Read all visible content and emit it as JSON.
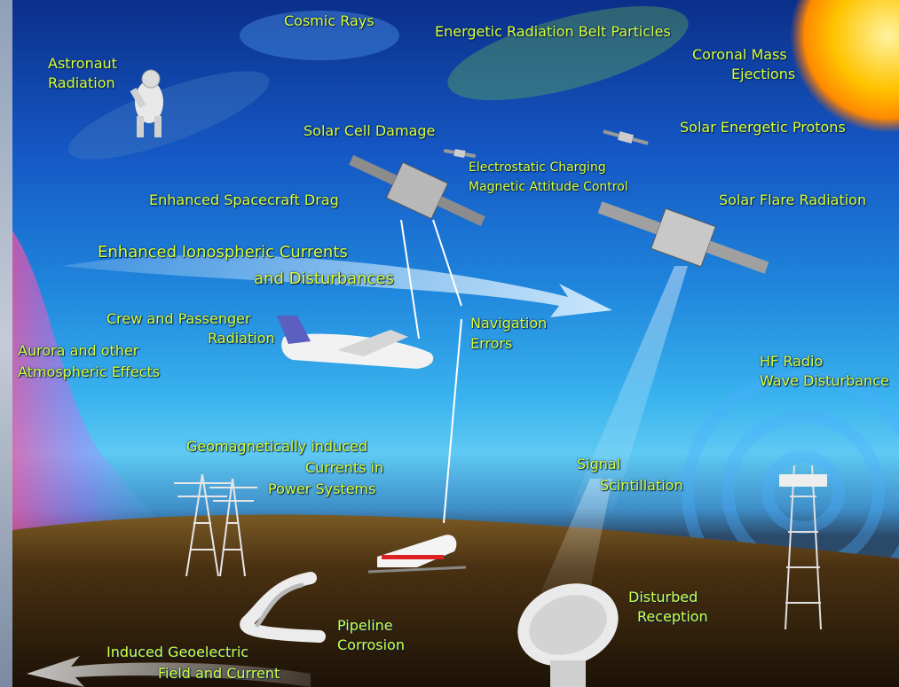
{
  "labels": {
    "cosmic_rays": "Cosmic Rays",
    "belt_particles": "Energetic Radiation Belt Particles",
    "cme_1": "Coronal Mass",
    "cme_2": "Ejections",
    "astronaut_1": "Astronaut",
    "astronaut_2": "Radiation",
    "solar_cell": "Solar Cell Damage",
    "solar_protons": "Solar Energetic Protons",
    "electrostatic": "Electrostatic Charging",
    "magnetic_attitude": "Magnetic Attitude Control",
    "spacecraft_drag": "Enhanced Spacecraft Drag",
    "solar_flare": "Solar Flare Radiation",
    "iono_1": "Enhanced Ionospheric Currents",
    "iono_2": "and Disturbances",
    "crew_1": "Crew and Passenger",
    "crew_2": "Radiation",
    "nav_1": "Navigation",
    "nav_2": "Errors",
    "aurora_1": "Aurora and other",
    "aurora_2": "Atmospheric Effects",
    "hf_1": "HF Radio",
    "hf_2": "Wave Disturbance",
    "gic_1": "Geomagnetically induced",
    "gic_2": "Currents in",
    "gic_3": "Power Systems",
    "signal_1": "Signal",
    "signal_2": "Scintillation",
    "disturbed_1": "Disturbed",
    "disturbed_2": "Reception",
    "pipeline_1": "Pipeline",
    "pipeline_2": "Corrosion",
    "geoelectric_1": "Induced Geoelectric",
    "geoelectric_2": "Field and Current"
  },
  "colors": {
    "label": "#d7ff3a",
    "sky_top": "#0b2f8a",
    "sky_horizon": "#5ec9f3",
    "ground": "#6b4a1e",
    "sun": "#ffb800"
  }
}
